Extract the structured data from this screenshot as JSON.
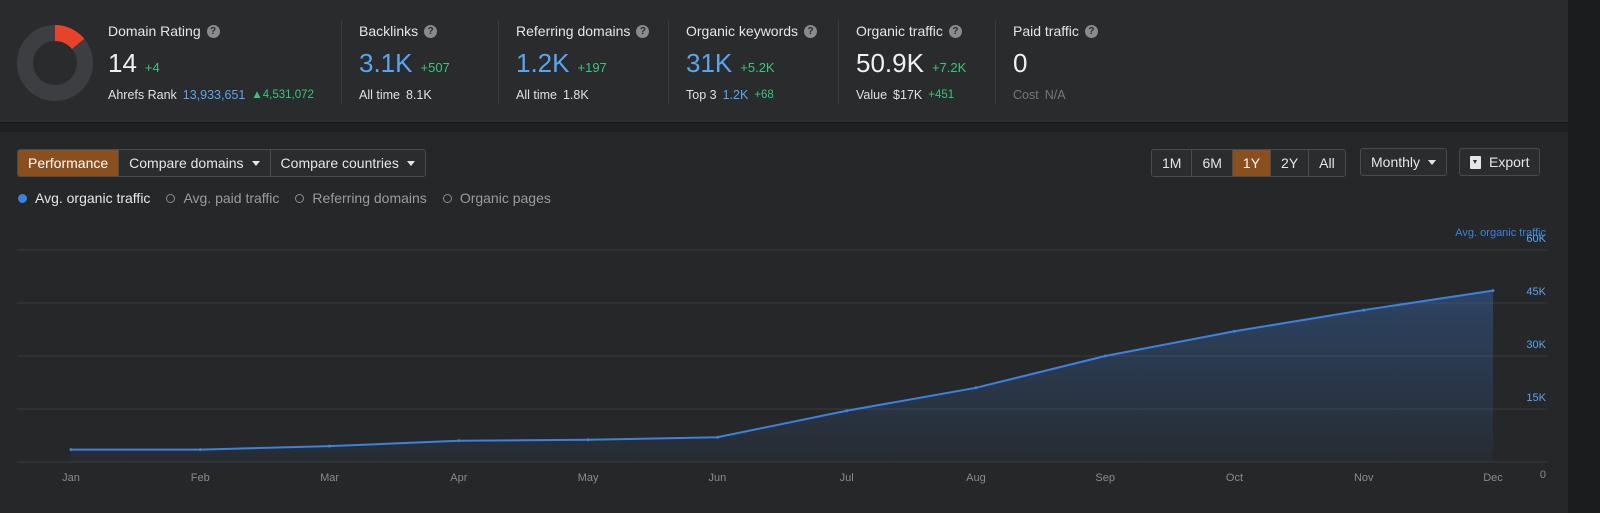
{
  "metrics": {
    "domain_rating": {
      "label": "Domain Rating",
      "value": "14",
      "delta": "+4",
      "rank_label": "Ahrefs Rank",
      "rank_value": "13,933,651",
      "rank_delta": "4,531,072",
      "rating_out_of_100": 14
    },
    "backlinks": {
      "label": "Backlinks",
      "value": "3.1K",
      "delta": "+507",
      "sub_label": "All time",
      "sub_value": "8.1K"
    },
    "referring_domains": {
      "label": "Referring domains",
      "value": "1.2K",
      "delta": "+197",
      "sub_label": "All time",
      "sub_value": "1.8K"
    },
    "organic_keywords": {
      "label": "Organic keywords",
      "value": "31K",
      "delta": "+5.2K",
      "sub_label": "Top 3",
      "sub_value": "1.2K",
      "sub_delta": "+68"
    },
    "organic_traffic": {
      "label": "Organic traffic",
      "value": "50.9K",
      "delta": "+7.2K",
      "sub_label": "Value",
      "sub_value": "$17K",
      "sub_delta": "+451"
    },
    "paid_traffic": {
      "label": "Paid traffic",
      "value": "0",
      "sub_label": "Cost",
      "sub_value": "N/A"
    }
  },
  "toolbar": {
    "performance": "Performance",
    "compare_domains": "Compare domains",
    "compare_countries": "Compare countries",
    "ranges": [
      "1M",
      "6M",
      "1Y",
      "2Y",
      "All"
    ],
    "active_range": "1Y",
    "interval": "Monthly",
    "export": "Export"
  },
  "legend": [
    "Avg. organic traffic",
    "Avg. paid traffic",
    "Referring domains",
    "Organic pages"
  ],
  "colors": {
    "accent": "#8a4f1e",
    "line": "#3b82e0",
    "positive": "#3cc47c",
    "link": "#5aa5f0",
    "dr_fill": "#e8432a"
  },
  "chart_data": {
    "type": "area",
    "series_label": "Avg. organic traffic",
    "categories": [
      "Jan",
      "Feb",
      "Mar",
      "Apr",
      "May",
      "Jun",
      "Jul",
      "Aug",
      "Sep",
      "Oct",
      "Nov",
      "Dec"
    ],
    "series": [
      {
        "name": "Avg. organic traffic",
        "values": [
          3500,
          3500,
          4500,
          6000,
          6300,
          7000,
          14500,
          21000,
          30000,
          37000,
          43000,
          48500
        ]
      }
    ],
    "y_ticks": [
      "0",
      "15K",
      "30K",
      "45K",
      "60K"
    ],
    "ylim": [
      0,
      60000
    ],
    "y_axis_position": "right",
    "grid": true
  }
}
